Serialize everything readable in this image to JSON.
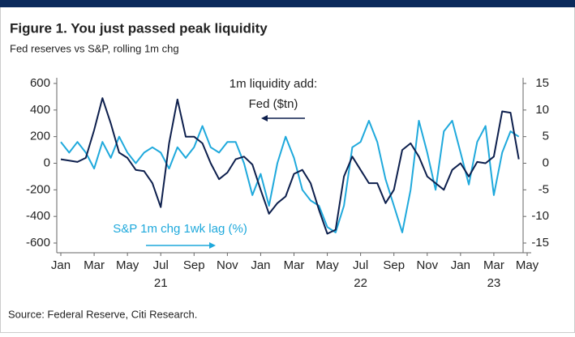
{
  "chart_data": {
    "type": "line",
    "title": "Figure 1. You just passed peak liquidity",
    "subtitle": "Fed reserves vs S&P, rolling 1m chg",
    "annotation": "1m liquidity add:",
    "source": "Source: Federal Reserve, Citi Research.",
    "x": [
      0,
      0.5,
      1,
      1.5,
      2,
      2.5,
      3,
      3.5,
      4,
      4.5,
      5,
      5.5,
      6,
      6.5,
      7,
      7.5,
      8,
      8.5,
      9,
      9.5,
      10,
      10.5,
      11,
      11.5,
      12,
      12.5,
      13,
      13.5,
      14,
      14.5,
      15,
      15.5,
      16,
      16.5,
      17,
      17.5,
      18,
      18.5,
      19,
      19.5,
      20,
      20.5,
      21,
      21.5,
      22,
      22.5,
      23,
      23.5,
      24,
      24.5,
      25,
      25.5,
      26,
      26.5,
      27,
      27.5
    ],
    "xlim": [
      0,
      28
    ],
    "xticks": [
      {
        "value": 0,
        "label": "Jan"
      },
      {
        "value": 2,
        "label": "Mar"
      },
      {
        "value": 4,
        "label": "May"
      },
      {
        "value": 6,
        "label": "Jul"
      },
      {
        "value": 8,
        "label": "Sep"
      },
      {
        "value": 10,
        "label": "Nov"
      },
      {
        "value": 12,
        "label": "Jan"
      },
      {
        "value": 14,
        "label": "Mar"
      },
      {
        "value": 16,
        "label": "May"
      },
      {
        "value": 18,
        "label": "Jul"
      },
      {
        "value": 20,
        "label": "Sep"
      },
      {
        "value": 22,
        "label": "Nov"
      },
      {
        "value": 24,
        "label": "Jan"
      },
      {
        "value": 26,
        "label": "Mar"
      },
      {
        "value": 28,
        "label": "May"
      }
    ],
    "x_year_labels": [
      {
        "value": 6,
        "label": "21"
      },
      {
        "value": 18,
        "label": "22"
      },
      {
        "value": 26,
        "label": "23"
      }
    ],
    "ylim": [
      -600,
      600
    ],
    "yticks": [
      -600,
      -400,
      -200,
      0,
      200,
      400,
      600
    ],
    "y2lim": [
      -15,
      15
    ],
    "y2ticks": [
      -15,
      -10,
      -5,
      0,
      5,
      10,
      15
    ],
    "series": [
      {
        "name": "Fed ($tn)",
        "color": "#0d1f4d",
        "axis": "y",
        "values": [
          30,
          20,
          10,
          40,
          250,
          490,
          300,
          80,
          40,
          -50,
          -60,
          -150,
          -330,
          150,
          480,
          200,
          200,
          150,
          0,
          -120,
          -70,
          30,
          50,
          -10,
          -200,
          -380,
          -300,
          -250,
          -80,
          -50,
          -150,
          -350,
          -530,
          -500,
          -100,
          50,
          -50,
          -150,
          -150,
          -300,
          -200,
          100,
          150,
          50,
          -100,
          -150,
          -200,
          -50,
          0,
          -100,
          10,
          0,
          50,
          390,
          380,
          30
        ]
      },
      {
        "name": "S&P 1m chg 1wk lag (%)",
        "color": "#1fa9dc",
        "axis": "y2",
        "values": [
          4,
          2,
          4,
          2,
          -1,
          4,
          1,
          5,
          2,
          0,
          2,
          3,
          2,
          -1,
          3,
          1,
          3,
          7,
          3,
          2,
          4,
          4,
          0,
          -6,
          -2,
          -8,
          0,
          5,
          1,
          -5,
          -7,
          -8,
          -12,
          -13,
          -8,
          3,
          4,
          8,
          4,
          -3,
          -8,
          -13,
          -5,
          8,
          2,
          -5,
          6,
          8,
          2,
          -4,
          4,
          7,
          -6,
          2,
          6,
          5
        ]
      }
    ]
  }
}
